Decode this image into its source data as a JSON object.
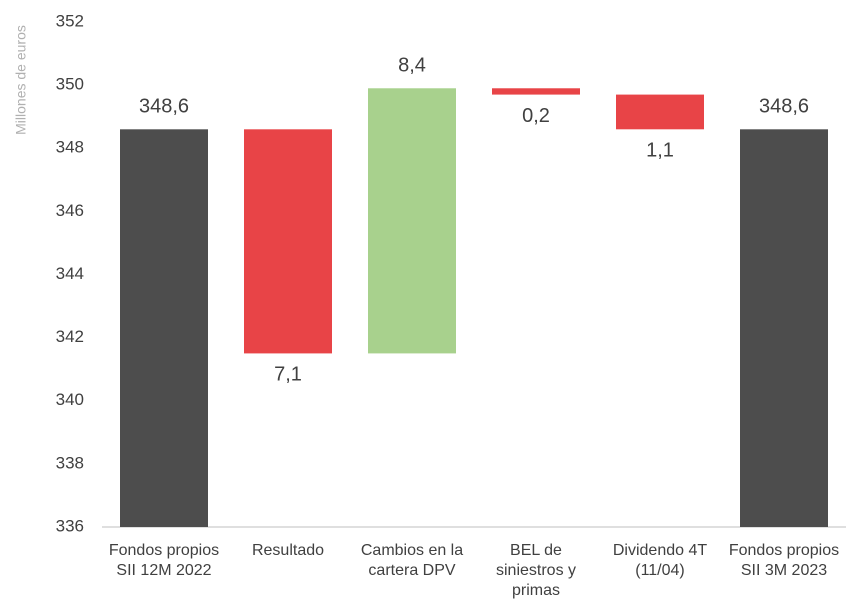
{
  "chart_data": {
    "type": "waterfall",
    "y_label": "Millones de euros",
    "categories": [
      "Fondos propios SII 12M 2022",
      "Resultado",
      "Cambios en la cartera DPV",
      "BEL de siniestros y primas",
      "Dividendo 4T (11/04)",
      "Fondos propios SII 3M 2023"
    ],
    "measure": [
      "absolute",
      "relative",
      "relative",
      "relative",
      "relative",
      "total"
    ],
    "values": [
      348.6,
      -7.1,
      8.4,
      -0.2,
      -1.1,
      348.6
    ],
    "value_labels": [
      "348,6",
      "7,1",
      "8,4",
      "0,2",
      "1,1",
      "348,6"
    ],
    "colors": [
      "#4d4d4d",
      "#e84447",
      "#a8d18d",
      "#e84447",
      "#e84447",
      "#4d4d4d"
    ],
    "ylim": [
      336,
      352
    ],
    "yticks": [
      336,
      338,
      340,
      342,
      344,
      346,
      348,
      350,
      352
    ]
  }
}
